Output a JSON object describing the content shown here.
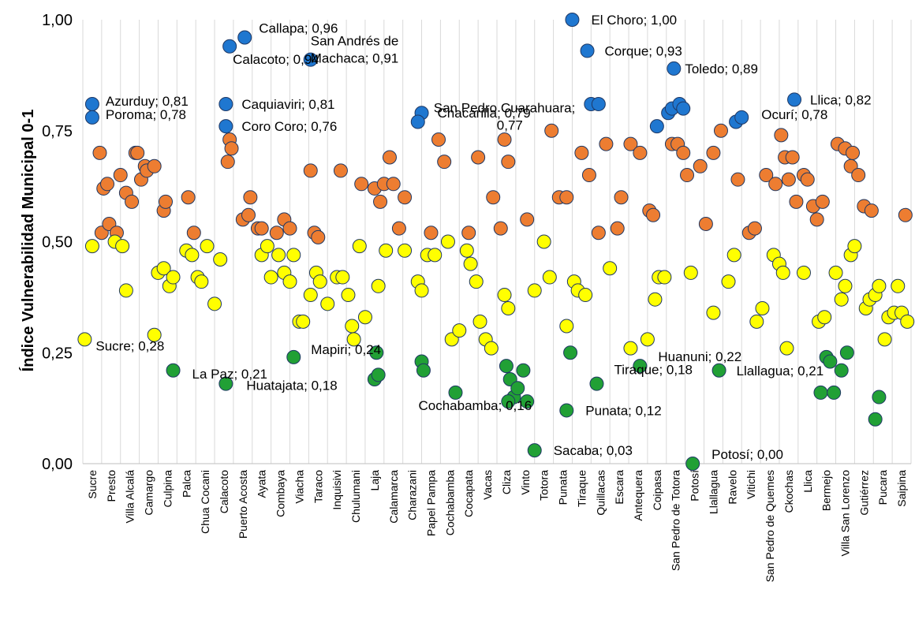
{
  "chart_data": {
    "type": "scatter",
    "xlabel": "",
    "ylabel": "Índice Vulnerabilidad Municipal 0-1",
    "ylim": [
      0,
      1
    ],
    "yticks": [
      "0,00",
      "0,25",
      "0,50",
      "0,75",
      "1,00"
    ],
    "ytick_values": [
      0,
      0.25,
      0.5,
      0.75,
      1.0
    ],
    "grid": "vertical",
    "categories": [
      "Sucre",
      "Presto",
      "Villa Alcalá",
      "Camargo",
      "Culpina",
      "Palca",
      "Chua Cocani",
      "Calacoto",
      "Puerto Acosta",
      "Ayata",
      "Combaya",
      "Viacha",
      "Taraco",
      "Inquisivi",
      "Chulumani",
      "Laja",
      "Calamarca",
      "Charazani",
      "Papel Pampa",
      "Cochabamba",
      "Cocapata",
      "Vacas",
      "Cliza",
      "Vinto",
      "Totora",
      "Punata",
      "Tiraque",
      "Quillacas",
      "Escara",
      "Antequera",
      "Coipasa",
      "San Pedro de Totora",
      "Potosí",
      "Llallagua",
      "Ravelo",
      "Vitichi",
      "San Pedro de Quemes",
      "Ckochas",
      "Llica",
      "Bermejo",
      "Villa San Lorenzo",
      "Gutiérrez",
      "Pucara",
      "Saipina"
    ],
    "colors": {
      "blue": "#1f77d0",
      "orange": "#ed7d31",
      "yellow": "#ffff00",
      "green": "#21a035"
    },
    "series": [
      {
        "color": "blue",
        "points": [
          [
            1.0,
            0.81
          ],
          [
            1.0,
            0.78
          ],
          [
            8.3,
            0.94
          ],
          [
            8.1,
            0.81
          ],
          [
            8.1,
            0.76
          ],
          [
            9.1,
            0.96
          ],
          [
            12.6,
            0.91
          ],
          [
            18.5,
            0.79
          ],
          [
            18.3,
            0.77
          ],
          [
            26.5,
            1.0
          ],
          [
            27.3,
            0.93
          ],
          [
            27.5,
            0.81
          ],
          [
            27.9,
            0.81
          ],
          [
            31.0,
            0.76
          ],
          [
            31.6,
            0.79
          ],
          [
            31.8,
            0.8
          ],
          [
            32.2,
            0.81
          ],
          [
            32.4,
            0.8
          ],
          [
            31.9,
            0.89
          ],
          [
            35.2,
            0.77
          ],
          [
            35.5,
            0.78
          ],
          [
            38.3,
            0.82
          ]
        ]
      },
      {
        "color": "orange",
        "points": [
          [
            1.4,
            0.7
          ],
          [
            1.5,
            0.52
          ],
          [
            1.6,
            0.62
          ],
          [
            1.8,
            0.63
          ],
          [
            1.9,
            0.54
          ],
          [
            2.3,
            0.52
          ],
          [
            2.5,
            0.65
          ],
          [
            2.8,
            0.61
          ],
          [
            3.1,
            0.59
          ],
          [
            3.3,
            0.7
          ],
          [
            3.4,
            0.7
          ],
          [
            3.6,
            0.64
          ],
          [
            3.8,
            0.67
          ],
          [
            3.9,
            0.66
          ],
          [
            4.3,
            0.67
          ],
          [
            4.8,
            0.57
          ],
          [
            4.9,
            0.59
          ],
          [
            6.1,
            0.6
          ],
          [
            6.4,
            0.52
          ],
          [
            8.3,
            0.73
          ],
          [
            8.4,
            0.71
          ],
          [
            8.2,
            0.68
          ],
          [
            9.0,
            0.55
          ],
          [
            9.3,
            0.56
          ],
          [
            9.4,
            0.6
          ],
          [
            9.8,
            0.53
          ],
          [
            10.0,
            0.53
          ],
          [
            10.8,
            0.52
          ],
          [
            11.2,
            0.55
          ],
          [
            11.5,
            0.53
          ],
          [
            12.6,
            0.66
          ],
          [
            12.8,
            0.52
          ],
          [
            13.0,
            0.51
          ],
          [
            14.2,
            0.66
          ],
          [
            15.3,
            0.63
          ],
          [
            16.0,
            0.62
          ],
          [
            16.3,
            0.59
          ],
          [
            16.5,
            0.63
          ],
          [
            16.8,
            0.69
          ],
          [
            17.0,
            0.63
          ],
          [
            17.3,
            0.53
          ],
          [
            17.6,
            0.6
          ],
          [
            19.0,
            0.52
          ],
          [
            19.4,
            0.73
          ],
          [
            19.7,
            0.68
          ],
          [
            21.0,
            0.52
          ],
          [
            21.5,
            0.69
          ],
          [
            22.3,
            0.6
          ],
          [
            22.7,
            0.53
          ],
          [
            22.9,
            0.73
          ],
          [
            23.1,
            0.68
          ],
          [
            24.1,
            0.55
          ],
          [
            25.4,
            0.75
          ],
          [
            25.8,
            0.6
          ],
          [
            26.2,
            0.6
          ],
          [
            27.0,
            0.7
          ],
          [
            27.4,
            0.65
          ],
          [
            27.9,
            0.52
          ],
          [
            28.3,
            0.72
          ],
          [
            28.9,
            0.53
          ],
          [
            29.1,
            0.6
          ],
          [
            29.6,
            0.72
          ],
          [
            30.1,
            0.7
          ],
          [
            30.6,
            0.57
          ],
          [
            30.8,
            0.56
          ],
          [
            31.8,
            0.72
          ],
          [
            32.1,
            0.72
          ],
          [
            32.4,
            0.7
          ],
          [
            32.6,
            0.65
          ],
          [
            33.3,
            0.67
          ],
          [
            33.6,
            0.54
          ],
          [
            34.0,
            0.7
          ],
          [
            34.4,
            0.75
          ],
          [
            35.3,
            0.64
          ],
          [
            35.9,
            0.52
          ],
          [
            36.2,
            0.53
          ],
          [
            36.8,
            0.65
          ],
          [
            37.3,
            0.63
          ],
          [
            37.6,
            0.74
          ],
          [
            37.8,
            0.69
          ],
          [
            38.0,
            0.64
          ],
          [
            38.2,
            0.69
          ],
          [
            38.4,
            0.59
          ],
          [
            38.8,
            0.65
          ],
          [
            39.0,
            0.64
          ],
          [
            39.3,
            0.58
          ],
          [
            39.5,
            0.55
          ],
          [
            39.8,
            0.59
          ],
          [
            40.6,
            0.72
          ],
          [
            41.0,
            0.71
          ],
          [
            41.3,
            0.67
          ],
          [
            41.4,
            0.7
          ],
          [
            41.7,
            0.65
          ],
          [
            42.0,
            0.58
          ],
          [
            42.4,
            0.57
          ],
          [
            44.2,
            0.56
          ]
        ]
      },
      {
        "color": "yellow",
        "points": [
          [
            0.6,
            0.28
          ],
          [
            1.0,
            0.49
          ],
          [
            2.2,
            0.5
          ],
          [
            2.6,
            0.49
          ],
          [
            2.8,
            0.39
          ],
          [
            4.3,
            0.29
          ],
          [
            4.5,
            0.43
          ],
          [
            4.8,
            0.44
          ],
          [
            5.1,
            0.4
          ],
          [
            5.3,
            0.42
          ],
          [
            6.0,
            0.48
          ],
          [
            6.3,
            0.47
          ],
          [
            6.6,
            0.42
          ],
          [
            6.8,
            0.41
          ],
          [
            7.1,
            0.49
          ],
          [
            7.5,
            0.36
          ],
          [
            7.8,
            0.46
          ],
          [
            10.0,
            0.47
          ],
          [
            10.3,
            0.49
          ],
          [
            10.5,
            0.42
          ],
          [
            10.9,
            0.47
          ],
          [
            11.2,
            0.43
          ],
          [
            11.5,
            0.41
          ],
          [
            11.7,
            0.47
          ],
          [
            12.0,
            0.32
          ],
          [
            12.2,
            0.32
          ],
          [
            12.6,
            0.38
          ],
          [
            12.9,
            0.43
          ],
          [
            13.1,
            0.41
          ],
          [
            13.5,
            0.36
          ],
          [
            14.0,
            0.42
          ],
          [
            14.3,
            0.42
          ],
          [
            14.6,
            0.38
          ],
          [
            14.8,
            0.31
          ],
          [
            14.9,
            0.28
          ],
          [
            15.2,
            0.49
          ],
          [
            15.5,
            0.33
          ],
          [
            16.2,
            0.4
          ],
          [
            16.6,
            0.48
          ],
          [
            17.6,
            0.48
          ],
          [
            18.3,
            0.41
          ],
          [
            18.5,
            0.39
          ],
          [
            18.8,
            0.47
          ],
          [
            19.2,
            0.47
          ],
          [
            19.9,
            0.5
          ],
          [
            20.1,
            0.28
          ],
          [
            20.5,
            0.3
          ],
          [
            20.9,
            0.48
          ],
          [
            21.1,
            0.45
          ],
          [
            21.4,
            0.41
          ],
          [
            21.6,
            0.32
          ],
          [
            21.9,
            0.28
          ],
          [
            22.2,
            0.26
          ],
          [
            22.9,
            0.38
          ],
          [
            23.1,
            0.35
          ],
          [
            24.5,
            0.39
          ],
          [
            25.0,
            0.5
          ],
          [
            25.3,
            0.42
          ],
          [
            26.2,
            0.31
          ],
          [
            26.6,
            0.41
          ],
          [
            26.8,
            0.39
          ],
          [
            27.2,
            0.38
          ],
          [
            28.5,
            0.44
          ],
          [
            29.6,
            0.26
          ],
          [
            30.5,
            0.28
          ],
          [
            30.9,
            0.37
          ],
          [
            31.1,
            0.42
          ],
          [
            31.4,
            0.42
          ],
          [
            32.8,
            0.43
          ],
          [
            34.0,
            0.34
          ],
          [
            34.8,
            0.41
          ],
          [
            35.1,
            0.47
          ],
          [
            36.3,
            0.32
          ],
          [
            36.6,
            0.35
          ],
          [
            37.2,
            0.47
          ],
          [
            37.5,
            0.45
          ],
          [
            37.7,
            0.43
          ],
          [
            37.9,
            0.26
          ],
          [
            38.8,
            0.43
          ],
          [
            39.6,
            0.32
          ],
          [
            39.9,
            0.33
          ],
          [
            40.5,
            0.43
          ],
          [
            40.8,
            0.37
          ],
          [
            41.0,
            0.4
          ],
          [
            41.3,
            0.47
          ],
          [
            41.5,
            0.49
          ],
          [
            42.1,
            0.35
          ],
          [
            42.3,
            0.37
          ],
          [
            42.6,
            0.38
          ],
          [
            42.8,
            0.4
          ],
          [
            43.1,
            0.28
          ],
          [
            43.3,
            0.33
          ],
          [
            43.6,
            0.34
          ],
          [
            43.8,
            0.4
          ],
          [
            44.0,
            0.34
          ],
          [
            44.3,
            0.32
          ]
        ]
      },
      {
        "color": "green",
        "points": [
          [
            5.3,
            0.21
          ],
          [
            8.1,
            0.18
          ],
          [
            11.7,
            0.24
          ],
          [
            16.1,
            0.25
          ],
          [
            16.0,
            0.19
          ],
          [
            16.2,
            0.2
          ],
          [
            18.5,
            0.23
          ],
          [
            18.6,
            0.21
          ],
          [
            20.3,
            0.16
          ],
          [
            23.0,
            0.22
          ],
          [
            23.2,
            0.19
          ],
          [
            23.4,
            0.15
          ],
          [
            23.6,
            0.17
          ],
          [
            23.9,
            0.21
          ],
          [
            24.1,
            0.14
          ],
          [
            23.1,
            0.14
          ],
          [
            24.5,
            0.03
          ],
          [
            26.4,
            0.25
          ],
          [
            26.2,
            0.12
          ],
          [
            27.8,
            0.18
          ],
          [
            30.1,
            0.22
          ],
          [
            32.9,
            0.0
          ],
          [
            34.3,
            0.21
          ],
          [
            39.7,
            0.16
          ],
          [
            40.0,
            0.24
          ],
          [
            40.2,
            0.23
          ],
          [
            40.4,
            0.16
          ],
          [
            40.8,
            0.21
          ],
          [
            41.1,
            0.25
          ],
          [
            42.6,
            0.1
          ],
          [
            42.8,
            0.15
          ]
        ]
      }
    ],
    "annotations": [
      {
        "text": "Azurduy; 0,81",
        "x": 1.0,
        "y": 0.81
      },
      {
        "text": "Poroma; 0,78",
        "x": 1.0,
        "y": 0.78
      },
      {
        "text": "Sucre; 0,28",
        "x": 0.6,
        "y": 0.28
      },
      {
        "text": "Callapa; 0,96",
        "x": 9.1,
        "y": 0.96
      },
      {
        "text": "Calacoto; 0,94",
        "x": 8.3,
        "y": 0.94
      },
      {
        "text": "Caquiaviri; 0,81",
        "x": 8.1,
        "y": 0.81
      },
      {
        "text": "Coro Coro; 0,76",
        "x": 8.1,
        "y": 0.76
      },
      {
        "text": "San Andrés de",
        "x": 12.6,
        "y": 0.91
      },
      {
        "text": "Machaca; 0,91",
        "x": 12.6,
        "y": 0.91
      },
      {
        "text": "La Paz; 0,21",
        "x": 5.3,
        "y": 0.21
      },
      {
        "text": "Huatajata; 0,18",
        "x": 8.1,
        "y": 0.18
      },
      {
        "text": "Mapiri; 0,24",
        "x": 11.7,
        "y": 0.24
      },
      {
        "text": "Chacarilla; 0,79",
        "x": 18.5,
        "y": 0.79
      },
      {
        "text": "San Pedro Cuarahuara;",
        "x": 18.3,
        "y": 0.77
      },
      {
        "text": "0,77",
        "x": 18.3,
        "y": 0.77
      },
      {
        "text": "Cochabamba; 0,16",
        "x": 20.3,
        "y": 0.16
      },
      {
        "text": "Sacaba; 0,03",
        "x": 24.5,
        "y": 0.03
      },
      {
        "text": "Punata; 0,12",
        "x": 26.2,
        "y": 0.12
      },
      {
        "text": "Tiraque; 0,18",
        "x": 27.8,
        "y": 0.18
      },
      {
        "text": "El Choro; 1,00",
        "x": 26.5,
        "y": 1.0
      },
      {
        "text": "Corque; 0,93",
        "x": 27.3,
        "y": 0.93
      },
      {
        "text": "Toledo; 0,89",
        "x": 31.9,
        "y": 0.89
      },
      {
        "text": "Huanuni; 0,22",
        "x": 30.1,
        "y": 0.22
      },
      {
        "text": "Potosí; 0,00",
        "x": 32.9,
        "y": 0.0
      },
      {
        "text": "Llallagua; 0,21",
        "x": 34.3,
        "y": 0.21
      },
      {
        "text": "Ocurí; 0,78",
        "x": 35.5,
        "y": 0.78
      },
      {
        "text": "Llica; 0,82",
        "x": 38.3,
        "y": 0.82
      }
    ]
  }
}
